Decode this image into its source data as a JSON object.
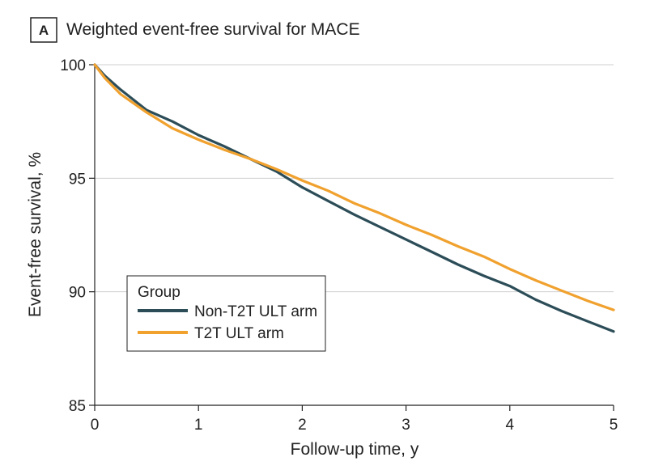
{
  "chart_data": {
    "type": "line",
    "panel_label": "A",
    "title": "Weighted event-free survival for MACE",
    "xlabel": "Follow-up time, y",
    "ylabel": "Event-free survival, %",
    "xlim": [
      0,
      5
    ],
    "ylim": [
      85,
      100
    ],
    "xticks": [
      0,
      1,
      2,
      3,
      4,
      5
    ],
    "xtick_labels": [
      "0",
      "1",
      "2",
      "3",
      "4",
      "5"
    ],
    "yticks": [
      85,
      90,
      95,
      100
    ],
    "ytick_labels": [
      "85",
      "90",
      "95",
      "100"
    ],
    "grid": "horizontal",
    "legend": {
      "title": "Group",
      "placement": "lower-left"
    },
    "series": [
      {
        "name": "Non-T2T ULT arm",
        "color": "#2c4d58",
        "x": [
          0,
          0.1,
          0.25,
          0.5,
          0.75,
          1.0,
          1.25,
          1.5,
          1.75,
          2.0,
          2.25,
          2.5,
          2.75,
          3.0,
          3.25,
          3.5,
          3.75,
          4.0,
          4.25,
          4.5,
          4.75,
          5.0
        ],
        "y": [
          100,
          99.5,
          98.9,
          98.0,
          97.5,
          96.9,
          96.4,
          95.85,
          95.3,
          94.6,
          94.0,
          93.4,
          92.85,
          92.3,
          91.75,
          91.2,
          90.7,
          90.25,
          89.65,
          89.15,
          88.7,
          88.25
        ]
      },
      {
        "name": "T2T ULT arm",
        "color": "#f0a12e",
        "x": [
          0,
          0.1,
          0.25,
          0.5,
          0.75,
          1.0,
          1.25,
          1.5,
          1.75,
          2.0,
          2.25,
          2.5,
          2.75,
          3.0,
          3.25,
          3.5,
          3.75,
          4.0,
          4.25,
          4.5,
          4.75,
          5.0
        ],
        "y": [
          100,
          99.4,
          98.7,
          97.9,
          97.2,
          96.7,
          96.25,
          95.85,
          95.4,
          94.9,
          94.45,
          93.9,
          93.45,
          92.95,
          92.5,
          92.0,
          91.55,
          91.0,
          90.5,
          90.05,
          89.6,
          89.2
        ]
      }
    ]
  }
}
